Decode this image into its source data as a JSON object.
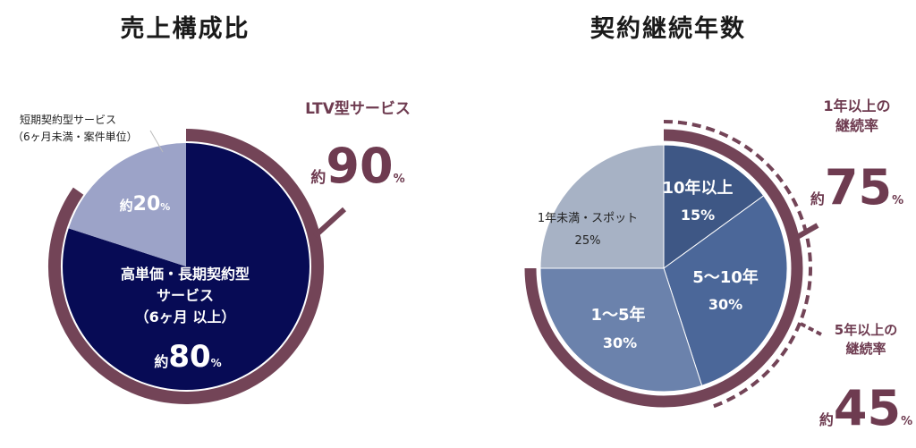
{
  "colors": {
    "ring": "#734457",
    "accent_text": "#6e3b50",
    "navy": "#070b55",
    "lavender": "#9ca3c8",
    "c15": "#3e5785",
    "c30a": "#4b6799",
    "c30b": "#6b82ac",
    "c25": "#a7b2c5"
  },
  "chart_data": [
    {
      "type": "pie",
      "title": "売上構成比",
      "slices": [
        {
          "label": "高単価・長期契約型サービス（6ヶ月以上）",
          "value": 80,
          "text_lines": [
            "高単価・長期契約型",
            "サービス",
            "（6ヶ月 以上）"
          ],
          "prefix": "約",
          "number": "80",
          "unit": "%"
        },
        {
          "label": "短期契約型サービス（6ヶ月未満・案件単位）",
          "value": 20,
          "prefix": "約",
          "number": "20",
          "unit": "%"
        }
      ],
      "external_label_lines": [
        "短期契約型サービス",
        "（6ヶ月未満・案件単位）"
      ],
      "callout": {
        "title": "LTV型サービス",
        "prefix": "約",
        "number": "90",
        "unit": "%"
      }
    },
    {
      "type": "pie",
      "title": "契約継続年数",
      "slices": [
        {
          "label": "10年以上",
          "value": 15,
          "pct": "15%"
        },
        {
          "label": "5～10年",
          "value": 30,
          "pct": "30%"
        },
        {
          "label": "1～5年",
          "value": 30,
          "pct": "30%"
        },
        {
          "label": "1年未満・スポット",
          "value": 25,
          "pct": "25%"
        }
      ],
      "callouts": [
        {
          "title_lines": [
            "1年以上の",
            "継続率"
          ],
          "prefix": "約",
          "number": "75",
          "unit": "%"
        },
        {
          "title_lines": [
            "5年以上の",
            "継続率"
          ],
          "prefix": "約",
          "number": "45",
          "unit": "%"
        }
      ]
    }
  ]
}
